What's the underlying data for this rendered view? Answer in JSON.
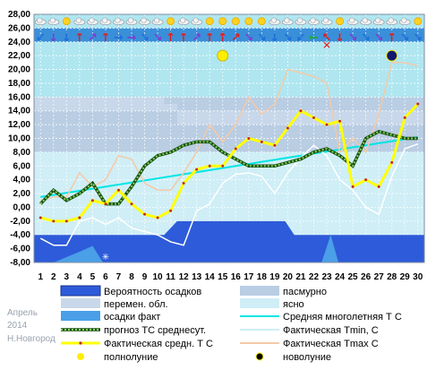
{
  "chart_data": {
    "type": "line",
    "month": "Апрель",
    "year": "2014",
    "city": "Н.Новгород",
    "x": [
      1,
      2,
      3,
      4,
      5,
      6,
      7,
      8,
      9,
      10,
      11,
      12,
      13,
      14,
      15,
      16,
      17,
      18,
      19,
      20,
      21,
      22,
      23,
      24,
      25,
      26,
      27,
      28,
      29,
      30
    ],
    "ylim": [
      -8,
      28
    ],
    "yticks": [
      "28,00",
      "26,00",
      "24,00",
      "22,00",
      "20,00",
      "18,00",
      "16,00",
      "14,00",
      "12,00",
      "10,00",
      "8,00",
      "6,00",
      "4,00",
      "2,00",
      "0,00",
      "-2,00",
      "-4,00",
      "-6,00",
      "-8,00"
    ],
    "cloud_bands": {
      "overcast": {
        "from_day": 0.5,
        "to_day": 30.5,
        "from": 8,
        "to": 16
      },
      "variable": [
        {
          "days": [
            0.5,
            10.5
          ],
          "from": 14,
          "to": 16
        },
        {
          "days": [
            10.5,
            11.5
          ],
          "from": 14,
          "to": 15
        },
        {
          "days": [
            11.5,
            30.5
          ],
          "from": 12,
          "to": 14
        }
      ],
      "clear": {
        "from_day": 0.5,
        "to_day": 30.5,
        "from": -4,
        "to": 8
      }
    },
    "precip_probability": [
      {
        "day": 0.5,
        "value": -4
      },
      {
        "day": 10.5,
        "value": -4
      },
      {
        "day": 11.5,
        "value": -2
      },
      {
        "day": 19.8,
        "value": -2
      },
      {
        "day": 20.5,
        "value": -4
      },
      {
        "day": 30.5,
        "value": -4
      }
    ],
    "precip_fact": [
      {
        "day": 2,
        "value": -8
      },
      {
        "day": 4.3,
        "value": -6.2
      },
      {
        "day": 5,
        "value": -5.6
      },
      {
        "day": 5.8,
        "value": -8
      },
      {
        "day": 22.6,
        "value": -8
      },
      {
        "day": 23.3,
        "value": -4
      },
      {
        "day": 23.9,
        "value": -8
      }
    ],
    "snow_marker_day": 6,
    "series": [
      {
        "name": "Средняя многолетняя Т С",
        "color": "#00e5e5",
        "values": [
          1.5,
          1.8,
          2.1,
          2.4,
          2.7,
          3.0,
          3.3,
          3.6,
          3.9,
          4.2,
          4.5,
          4.8,
          5.1,
          5.4,
          5.7,
          6.0,
          6.3,
          6.6,
          6.9,
          7.2,
          7.5,
          7.8,
          8.1,
          8.4,
          8.7,
          9.0,
          9.3,
          9.6,
          9.9,
          10.2
        ]
      },
      {
        "name": "Фактическая Тmin, С",
        "color": "#ffffff",
        "values": [
          -4.5,
          -5.5,
          -5.5,
          -2.0,
          -1.5,
          -2.5,
          -1.5,
          -3.0,
          -3.5,
          -4.0,
          -5.0,
          -5.5,
          -0.5,
          0.5,
          3.5,
          4.8,
          5.0,
          4.5,
          2.0,
          5.0,
          7.2,
          9.0,
          7.5,
          4.0,
          2.5,
          0.0,
          -1.0,
          4.5,
          8.5,
          9.2
        ]
      },
      {
        "name": "Фактическая Тmax С",
        "color": "#f5c9a6",
        "values": [
          1.0,
          1.5,
          1.5,
          5.0,
          3.0,
          4.0,
          7.5,
          7.0,
          3.5,
          2.5,
          2.5,
          5.0,
          8.0,
          12.0,
          9.5,
          12.0,
          16.0,
          13.5,
          15.0,
          20.0,
          19.5,
          19.0,
          18.0,
          8.0,
          10.0,
          8.0,
          13.5,
          21.0,
          21.0,
          20.5
        ]
      },
      {
        "name": "прогноз ТС среднесут.",
        "color": "#3c8c2a",
        "values": [
          0.5,
          2.5,
          1.0,
          2.0,
          3.5,
          0.5,
          0.5,
          3.0,
          6.0,
          7.5,
          8.0,
          9.0,
          9.5,
          9.5,
          8.0,
          7.0,
          6.0,
          6.0,
          6.0,
          6.5,
          7.0,
          8.0,
          8.5,
          7.5,
          6.0,
          10.0,
          11.0,
          10.5,
          10.0,
          10.0
        ]
      },
      {
        "name": "Фактическая средн. Т С",
        "color": "#ffff00",
        "values": [
          -1.5,
          -2.0,
          -2.0,
          -1.5,
          1.0,
          0.5,
          2.5,
          0.5,
          -1.0,
          -1.5,
          -0.5,
          3.5,
          5.5,
          6.0,
          6.0,
          8.5,
          10.0,
          9.5,
          9.0,
          11.5,
          14.0,
          13.0,
          12.0,
          12.5,
          3.0,
          4.0,
          3.0,
          6.5,
          13.0,
          15.0
        ]
      }
    ],
    "full_moon": {
      "day": 15,
      "value": 22.0
    },
    "new_moon": {
      "day": 28,
      "value": 22.0
    },
    "weather_icons": [
      "cloud",
      "cloud",
      "sun",
      "cloud",
      "cloud",
      "cloud",
      "cloud",
      "cloud",
      "cloud",
      "cloud",
      "sun",
      "cloud",
      "cloud",
      "sun",
      "sun",
      "sun",
      "sun",
      "sun",
      "cloud",
      "cloud",
      "cloud",
      "cloud",
      "cloud",
      "sun",
      "cloud",
      "cloud",
      "cloud",
      "cloud",
      "cloud",
      "sun"
    ],
    "wind_arrows": [
      {
        "dir": "↙",
        "color": "#1e6fd9"
      },
      {
        "dir": "↓",
        "color": "#7b3fd1"
      },
      {
        "dir": "↓",
        "color": "#1e6fd9"
      },
      {
        "dir": "↑",
        "color": "#e02020"
      },
      {
        "dir": "↗",
        "color": "#7b3fd1"
      },
      {
        "dir": "↑",
        "color": "#e02020"
      },
      {
        "dir": "→",
        "color": "#1e6fd9"
      },
      {
        "dir": "→",
        "color": "#7b3fd1"
      },
      {
        "dir": "↘",
        "color": "#1e6fd9"
      },
      {
        "dir": "↘",
        "color": "#7b3fd1"
      },
      {
        "dir": "↑",
        "color": "#e02020"
      },
      {
        "dir": "↑",
        "color": "#e02020"
      },
      {
        "dir": "↗",
        "color": "#7b3fd1"
      },
      {
        "dir": "↑",
        "color": "#e02020"
      },
      {
        "dir": "↑",
        "color": "#e02020"
      },
      {
        "dir": "↗",
        "color": "#e02020"
      },
      {
        "dir": "↘",
        "color": "#7b3fd1"
      },
      {
        "dir": "↘",
        "color": "#1e6fd9"
      },
      {
        "dir": "↓",
        "color": "#1e6fd9"
      },
      {
        "dir": "↘",
        "color": "#1e6fd9"
      },
      {
        "dir": "↙",
        "color": "#1e6fd9"
      },
      {
        "dir": "←",
        "color": "#22a83a"
      },
      {
        "dir": "↖",
        "color": "#e02020"
      },
      {
        "dir": "↓",
        "color": "#e02020"
      },
      {
        "dir": "↘",
        "color": "#7b3fd1"
      },
      {
        "dir": "↘",
        "color": "#1e6fd9"
      },
      {
        "dir": "↘",
        "color": "#7b3fd1"
      },
      {
        "dir": "↑",
        "color": "#e02020"
      },
      {
        "dir": "↘",
        "color": "#1e6fd9"
      },
      {
        "dir": "↘",
        "color": "#1e6fd9"
      }
    ],
    "special_markers": [
      {
        "day": 23,
        "value": 23.0,
        "color": "#e02020"
      }
    ],
    "colors": {
      "plot_bg": "#afe6f0",
      "overcast": "#b9cde3",
      "variable": "#c8d8ea",
      "clear": "#cfeef6",
      "precip_prob": "#2e5bd9",
      "precip_fact": "#4a9fe8",
      "frame_top": "#3a8fd9",
      "moon_full": "#ffee00",
      "moon_new": "#101870"
    }
  },
  "legend": [
    {
      "label": "Вероятность осадков",
      "key": "precip_prob"
    },
    {
      "label": "перемен. обл.",
      "key": "variable"
    },
    {
      "label": "осадки факт",
      "key": "precip_fact"
    },
    {
      "label": "прогноз ТС среднесут.",
      "key": "forecast"
    },
    {
      "label": "Фактическая средн. Т С",
      "key": "fact_mean"
    },
    {
      "label": "полнолуние",
      "key": "full_moon"
    },
    {
      "label": "пасмурно",
      "key": "overcast"
    },
    {
      "label": "ясно",
      "key": "clear"
    },
    {
      "label": "Средняя многолетняя Т С",
      "key": "normal"
    },
    {
      "label": "Фактическая Тmin, С",
      "key": "tmin"
    },
    {
      "label": "Фактическая Тmax С",
      "key": "tmax"
    },
    {
      "label": "новолуние",
      "key": "new_moon"
    }
  ]
}
